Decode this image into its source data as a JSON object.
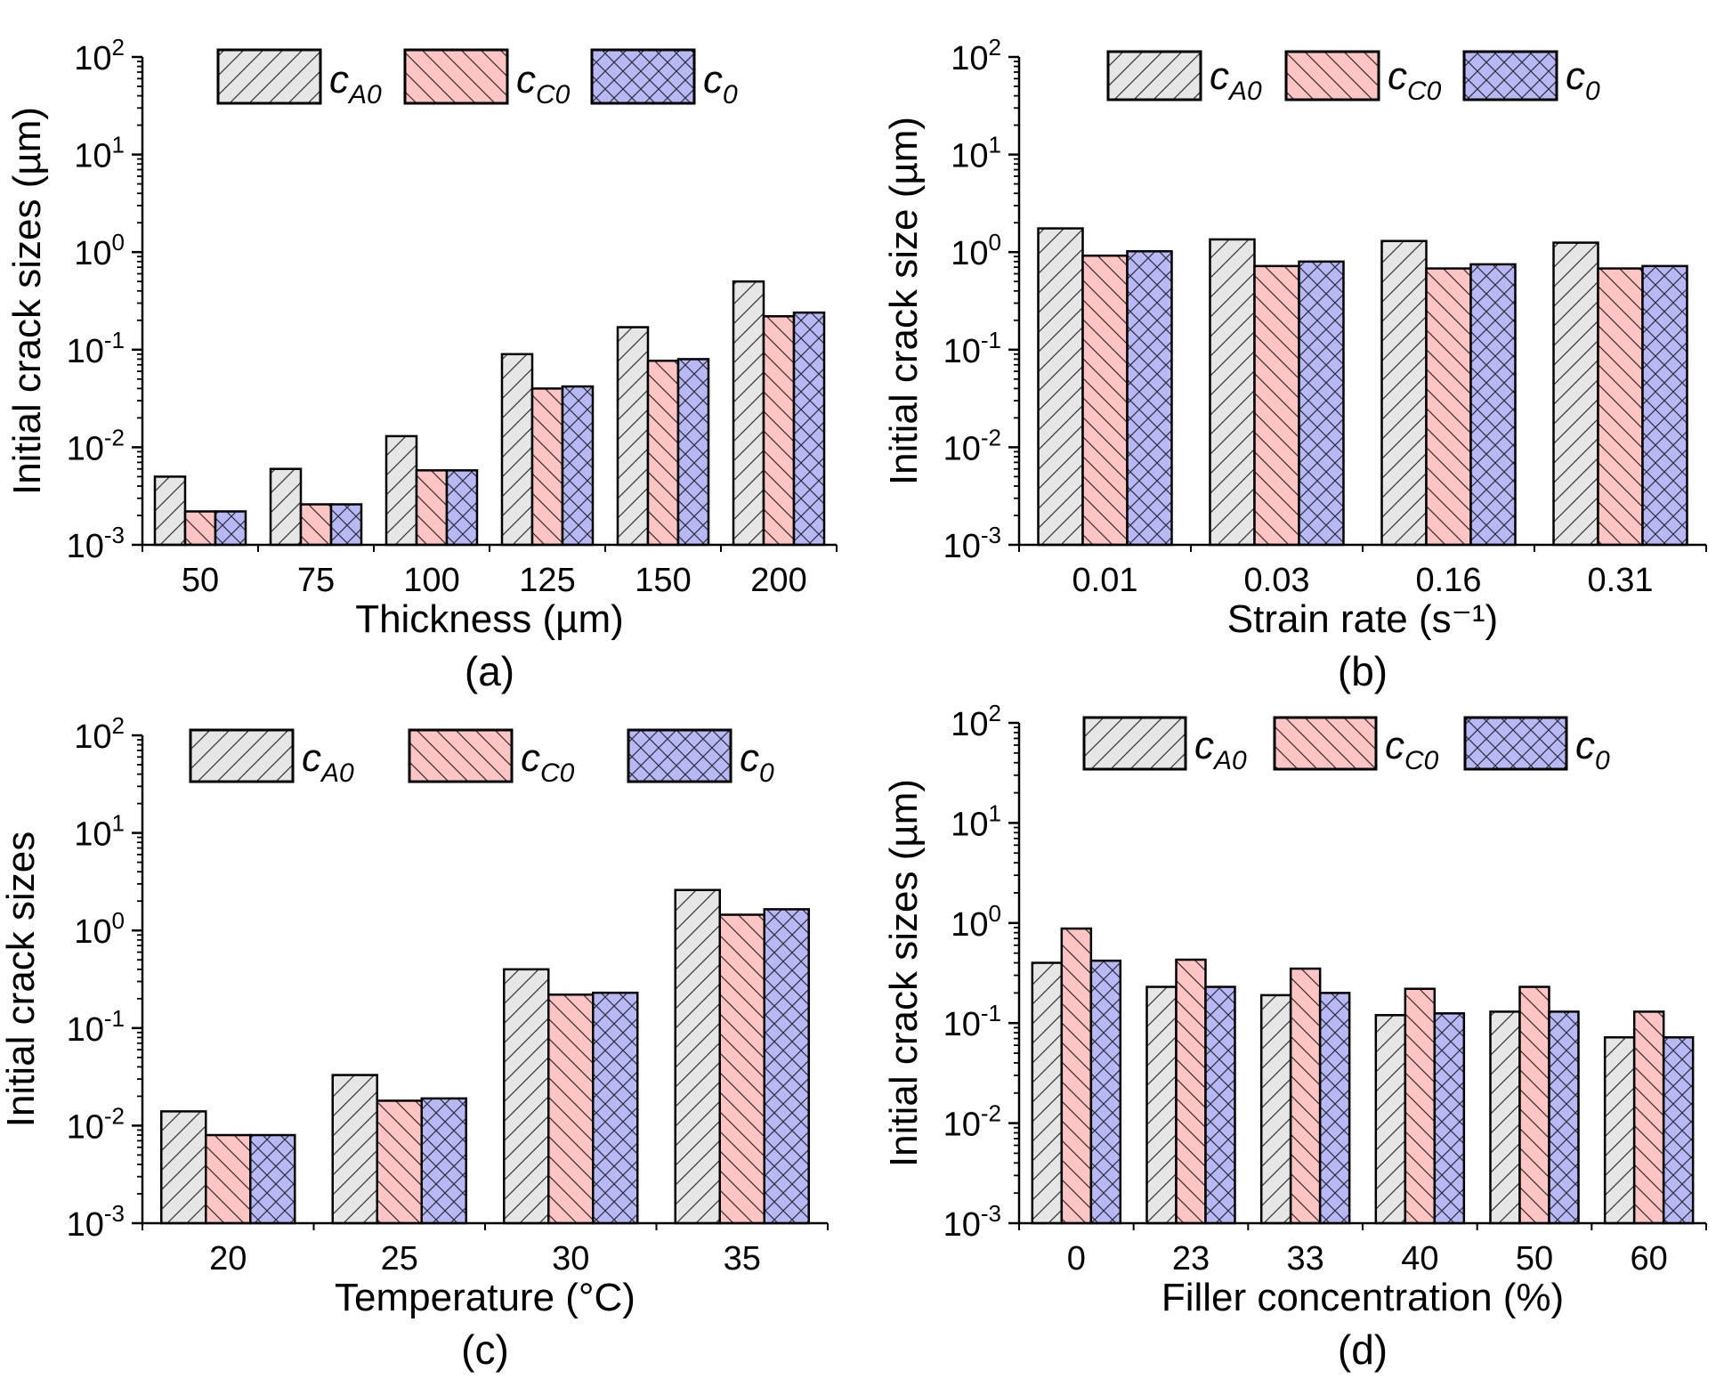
{
  "colors": {
    "cA0_fill": "#e6e6e6",
    "cC0_fill": "#ffc4c4",
    "c0_fill": "#b8b8f5",
    "stroke": "#000000"
  },
  "legend": [
    {
      "symbol": "c",
      "subscript": "A0",
      "pattern": "diag-up"
    },
    {
      "symbol": "c",
      "subscript": "C0",
      "pattern": "diag-down"
    },
    {
      "symbol": "c",
      "subscript": "0",
      "pattern": "crosshatch"
    }
  ],
  "chart_data": [
    {
      "type": "bar",
      "panel_label": "(a)",
      "xlabel": "Thickness (µm)",
      "ylabel": "Initial crack sizes (µm)",
      "yscale": "log",
      "ylim": [
        0.001,
        100
      ],
      "yticks": [
        "10^-3",
        "10^-2",
        "10^-1",
        "10^0",
        "10^1",
        "10^2"
      ],
      "categories": [
        "50",
        "75",
        "100",
        "125",
        "150",
        "200"
      ],
      "legend_position": "top",
      "series": [
        {
          "name": "cA0",
          "values": [
            0.005,
            0.006,
            0.013,
            0.09,
            0.17,
            0.5
          ]
        },
        {
          "name": "cC0",
          "values": [
            0.0022,
            0.0026,
            0.0058,
            0.04,
            0.077,
            0.22
          ]
        },
        {
          "name": "c0",
          "values": [
            0.0022,
            0.0026,
            0.0058,
            0.042,
            0.08,
            0.24
          ]
        }
      ]
    },
    {
      "type": "bar",
      "panel_label": "(b)",
      "xlabel": "Strain rate (s⁻¹)",
      "ylabel": "Initial crack size (µm)",
      "yscale": "log",
      "ylim": [
        0.001,
        100
      ],
      "yticks": [
        "10^-3",
        "10^-2",
        "10^-1",
        "10^0",
        "10^1",
        "10^2"
      ],
      "categories": [
        "0.01",
        "0.03",
        "0.16",
        "0.31"
      ],
      "legend_position": "top",
      "series": [
        {
          "name": "cA0",
          "values": [
            1.75,
            1.35,
            1.3,
            1.25
          ]
        },
        {
          "name": "cC0",
          "values": [
            0.92,
            0.72,
            0.68,
            0.68
          ]
        },
        {
          "name": "c0",
          "values": [
            1.02,
            0.8,
            0.75,
            0.72
          ]
        }
      ]
    },
    {
      "type": "bar",
      "panel_label": "(c)",
      "xlabel": "Temperature (°C)",
      "ylabel": "Initial crack sizes",
      "yscale": "log",
      "ylim": [
        0.001,
        100
      ],
      "yticks": [
        "10^-3",
        "10^-2",
        "10^-1",
        "10^0",
        "10^1",
        "10^2"
      ],
      "categories": [
        "20",
        "25",
        "30",
        "35"
      ],
      "legend_position": "top",
      "series": [
        {
          "name": "cA0",
          "values": [
            0.014,
            0.033,
            0.4,
            2.6
          ]
        },
        {
          "name": "cC0",
          "values": [
            0.008,
            0.018,
            0.22,
            1.45
          ]
        },
        {
          "name": "c0",
          "values": [
            0.008,
            0.019,
            0.23,
            1.65
          ]
        }
      ]
    },
    {
      "type": "bar",
      "panel_label": "(d)",
      "xlabel": "Filler concentration (%)",
      "ylabel": "Initial crack sizes (µm)",
      "yscale": "log",
      "ylim": [
        0.001,
        100
      ],
      "yticks": [
        "10^-3",
        "10^-2",
        "10^-1",
        "10^0",
        "10^1",
        "10^2"
      ],
      "categories": [
        "0",
        "23",
        "33",
        "40",
        "50",
        "60"
      ],
      "legend_position": "top",
      "series": [
        {
          "name": "cA0",
          "values": [
            0.4,
            0.23,
            0.19,
            0.12,
            0.13,
            0.072
          ]
        },
        {
          "name": "cC0",
          "values": [
            0.88,
            0.43,
            0.35,
            0.22,
            0.23,
            0.13
          ]
        },
        {
          "name": "c0",
          "values": [
            0.42,
            0.23,
            0.2,
            0.125,
            0.13,
            0.072
          ]
        }
      ]
    }
  ]
}
